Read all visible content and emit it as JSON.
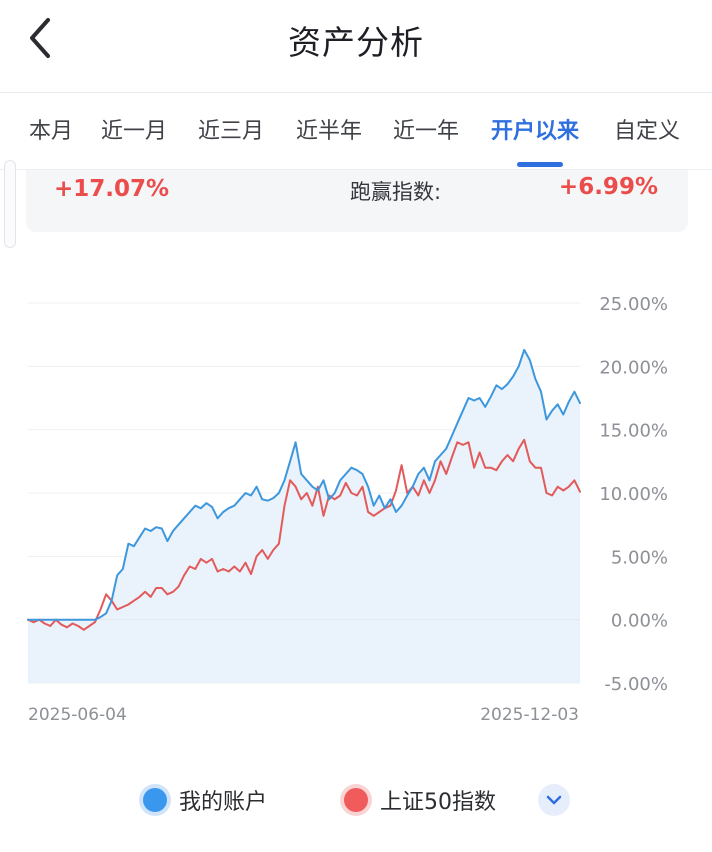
{
  "header": {
    "title": "资产分析",
    "back_icon": "chevron-left-icon"
  },
  "tabs": [
    {
      "label": "本月",
      "active": false
    },
    {
      "label": "近一月",
      "active": false
    },
    {
      "label": "近三月",
      "active": false
    },
    {
      "label": "近半年",
      "active": false
    },
    {
      "label": "近一年",
      "active": false
    },
    {
      "label": "开户以来",
      "active": true
    },
    {
      "label": "自定义",
      "active": false
    }
  ],
  "summary": {
    "account_return": "+17.07%",
    "beat_index_label": "跑赢指数:",
    "beat_index_value": "+6.99%"
  },
  "colors": {
    "account": "#3d97dd",
    "index": "#e35a5a",
    "accent": "#2f6fde",
    "positive": "#ea4d4b"
  },
  "chart_data": {
    "type": "line",
    "x_start_label": "2025-06-04",
    "x_end_label": "2025-12-03",
    "y_tick_labels": [
      "25.00%",
      "20.00%",
      "15.00%",
      "10.00%",
      "5.00%",
      "0.00%",
      "-5.00%"
    ],
    "ylim": [
      -5,
      25
    ],
    "series": [
      {
        "name": "我的账户",
        "values": [
          0,
          0,
          0,
          0,
          0,
          0,
          0,
          0,
          0,
          0,
          0,
          0,
          0,
          0.2,
          0.5,
          1.5,
          3.5,
          4.0,
          6.0,
          5.8,
          6.5,
          7.2,
          7.0,
          7.3,
          7.2,
          6.2,
          7.0,
          7.5,
          8.0,
          8.5,
          9.0,
          8.8,
          9.2,
          8.9,
          8.0,
          8.5,
          8.8,
          9.0,
          9.5,
          10.0,
          9.8,
          10.5,
          9.5,
          9.4,
          9.6,
          10.0,
          11.0,
          12.5,
          14.0,
          11.5,
          11.0,
          10.5,
          10.2,
          11.0,
          9.5,
          10.0,
          11.0,
          11.5,
          12.0,
          11.8,
          11.5,
          10.5,
          9.0,
          9.8,
          8.8,
          9.5,
          8.5,
          9.0,
          9.8,
          10.5,
          11.5,
          12.0,
          11.0,
          12.5,
          13.0,
          13.5,
          14.5,
          15.5,
          16.5,
          17.5,
          17.3,
          17.5,
          16.8,
          17.6,
          18.5,
          18.2,
          18.6,
          19.2,
          20.0,
          21.3,
          20.5,
          19.0,
          18.0,
          15.8,
          16.5,
          17.0,
          16.2,
          17.2,
          18.0,
          17.1
        ]
      },
      {
        "name": "上证50指数",
        "values": [
          0,
          -0.2,
          0,
          -0.3,
          -0.5,
          0,
          -0.4,
          -0.6,
          -0.3,
          -0.5,
          -0.8,
          -0.5,
          -0.2,
          0.8,
          2.0,
          1.5,
          0.8,
          1.0,
          1.2,
          1.5,
          1.8,
          2.2,
          1.8,
          2.5,
          2.5,
          2.0,
          2.2,
          2.6,
          3.5,
          4.2,
          4.0,
          4.8,
          4.5,
          4.8,
          3.8,
          4.0,
          3.8,
          4.2,
          3.8,
          4.5,
          3.6,
          5.0,
          5.5,
          4.8,
          5.5,
          6.0,
          9.0,
          11.0,
          10.5,
          9.5,
          10.0,
          9.0,
          10.5,
          8.2,
          9.8,
          9.5,
          9.8,
          10.8,
          10.0,
          9.8,
          10.5,
          8.5,
          8.2,
          8.5,
          8.8,
          9.0,
          10.2,
          12.2,
          10.0,
          10.5,
          9.8,
          11.0,
          10.0,
          11.0,
          12.5,
          11.5,
          12.8,
          14.0,
          13.8,
          14.0,
          12.0,
          13.2,
          12.0,
          12.0,
          11.8,
          12.5,
          13.0,
          12.5,
          13.5,
          14.2,
          12.5,
          12.0,
          12.0,
          10.0,
          9.8,
          10.5,
          10.2,
          10.5,
          11.0,
          10.1
        ]
      }
    ],
    "legend_position": "bottom",
    "grid": true
  }
}
